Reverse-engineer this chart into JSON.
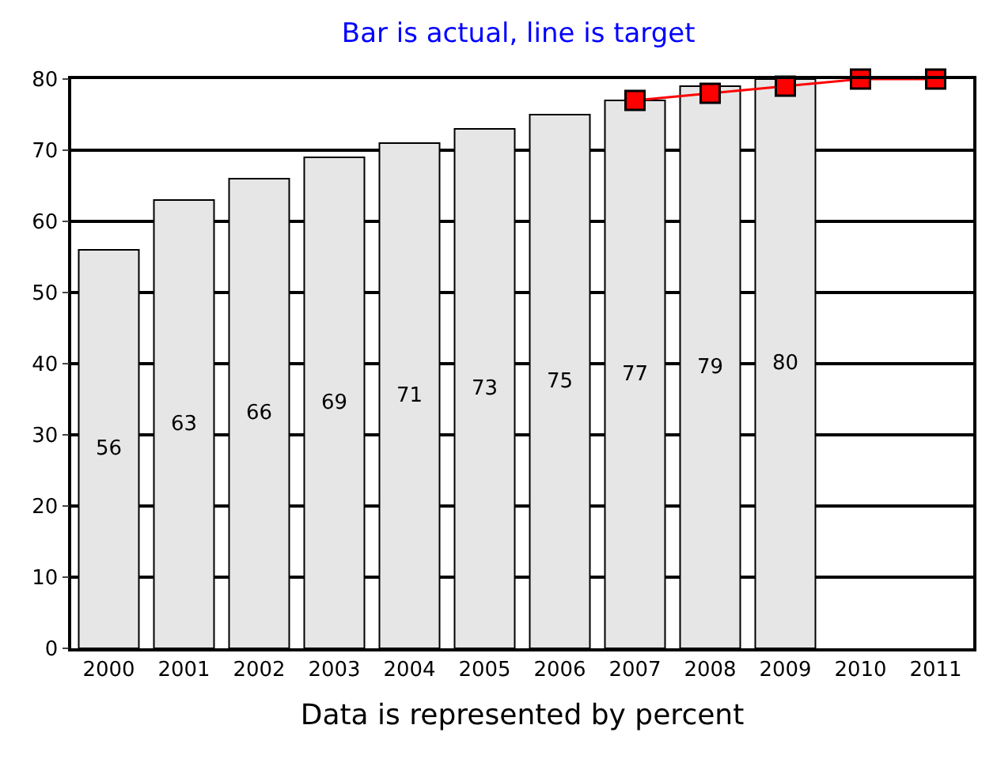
{
  "chart_data": {
    "type": "bar",
    "title": "Bar is actual, line is target",
    "xlabel": "Data is represented by percent",
    "categories": [
      "2000",
      "2001",
      "2002",
      "2003",
      "2004",
      "2005",
      "2006",
      "2007",
      "2008",
      "2009",
      "2010",
      "2011"
    ],
    "series": [
      {
        "color": "#e6e6e6",
        "values": [
          56,
          63,
          66,
          69,
          71,
          73,
          75,
          77,
          79,
          80,
          null,
          null
        ],
        "value_labels": [
          "56",
          "63",
          "66",
          "69",
          "71",
          "73",
          "75",
          "77",
          "79",
          "80",
          null,
          null
        ]
      },
      {
        "type": "line",
        "color": "#ff0000",
        "values": [
          null,
          null,
          null,
          null,
          null,
          null,
          null,
          77,
          78,
          79,
          80,
          80
        ],
        "marker": "square"
      }
    ],
    "ylim": [
      0,
      80
    ],
    "yticks": [
      0,
      10,
      20,
      30,
      40,
      50,
      60,
      70,
      80
    ],
    "grid": "y"
  }
}
